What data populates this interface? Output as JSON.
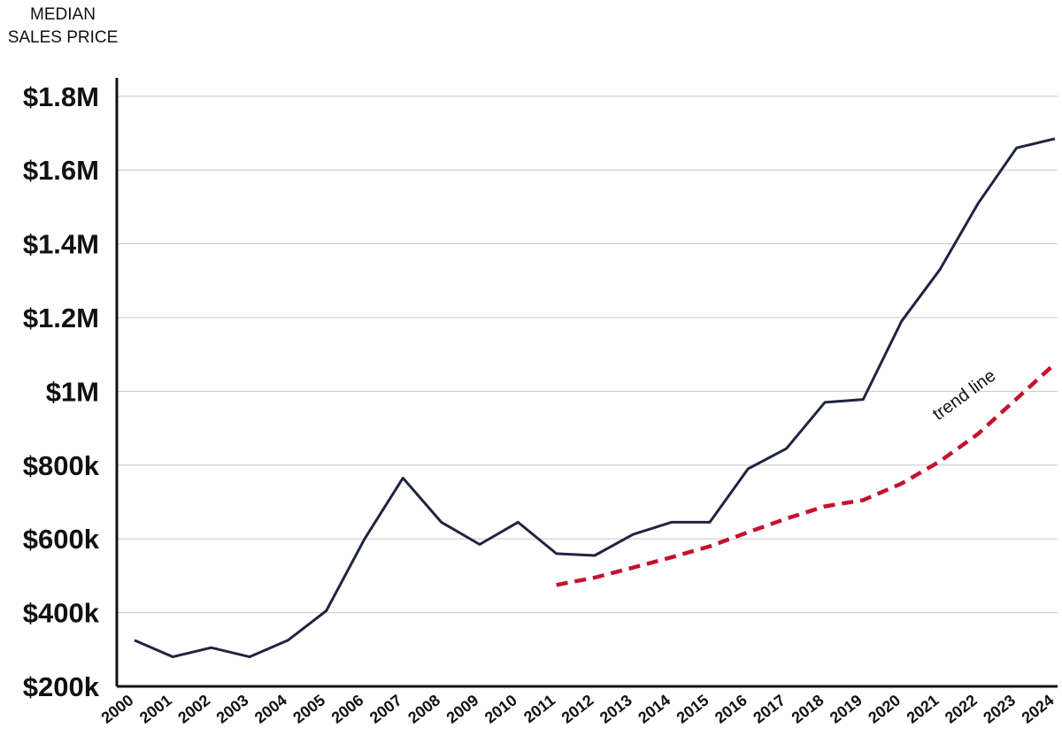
{
  "chart_data": {
    "type": "line",
    "ylabel": [
      "MEDIAN",
      "SALES PRICE"
    ],
    "xlabel": "",
    "title": "",
    "x": [
      2000,
      2001,
      2002,
      2003,
      2004,
      2005,
      2006,
      2007,
      2008,
      2009,
      2010,
      2011,
      2012,
      2013,
      2014,
      2015,
      2016,
      2017,
      2018,
      2019,
      2020,
      2021,
      2022,
      2023,
      2024
    ],
    "x_tick_labels": [
      "2000",
      "2001",
      "2002",
      "2003",
      "2004",
      "2005",
      "2006",
      "2007",
      "2008",
      "2009",
      "2010",
      "2011",
      "2012",
      "2013",
      "2014",
      "2015",
      "2016",
      "2017",
      "2018",
      "2019",
      "2020",
      "2021",
      "2022",
      "2023",
      "2024"
    ],
    "ylim": [
      200000,
      1850000
    ],
    "y_ticks": [
      200000,
      400000,
      600000,
      800000,
      1000000,
      1200000,
      1400000,
      1600000,
      1800000
    ],
    "y_tick_labels": [
      "$200k",
      "$400k",
      "$600k",
      "$800k",
      "$1M",
      "$1.2M",
      "$1.4M",
      "$1.6M",
      "$1.8M"
    ],
    "grid": true,
    "series": [
      {
        "style": "solid",
        "color": "#1f2540",
        "x": [
          2000,
          2001,
          2002,
          2003,
          2004,
          2005,
          2006,
          2007,
          2008,
          2009,
          2010,
          2011,
          2012,
          2013,
          2014,
          2015,
          2016,
          2017,
          2018,
          2019,
          2020,
          2021,
          2022,
          2023,
          2024
        ],
        "values": [
          325000,
          280000,
          305000,
          280000,
          325000,
          405000,
          600000,
          765000,
          645000,
          585000,
          645000,
          560000,
          555000,
          612000,
          645000,
          645000,
          790000,
          845000,
          970000,
          978000,
          1190000,
          1330000,
          1510000,
          1660000,
          1685000
        ]
      },
      {
        "name": "trend line",
        "style": "dashed",
        "color": "#c4122f",
        "x": [
          2011,
          2012,
          2013,
          2014,
          2015,
          2016,
          2017,
          2018,
          2019,
          2020,
          2021,
          2022,
          2023,
          2024
        ],
        "values": [
          475000,
          495000,
          522000,
          550000,
          580000,
          618000,
          655000,
          688000,
          705000,
          750000,
          810000,
          885000,
          980000,
          1075000
        ]
      }
    ],
    "annotations": [
      {
        "text": "trend line",
        "x": 2020.95,
        "y": 920000,
        "rotation": -36
      }
    ]
  }
}
